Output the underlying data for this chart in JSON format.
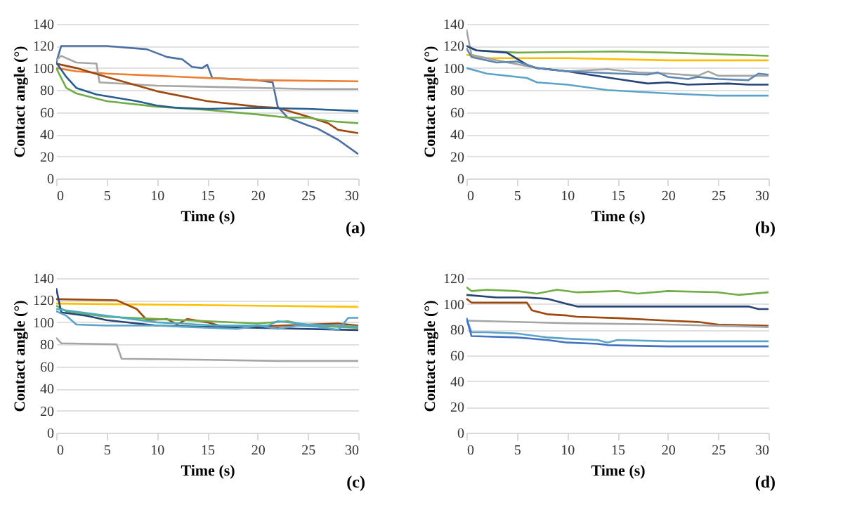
{
  "chart_data": [
    {
      "type": "line",
      "xlabel": "Time (s)",
      "ylabel": "Contact angle (°)",
      "xlim": [
        0,
        30
      ],
      "xticks": [
        0,
        5,
        10,
        15,
        20,
        25,
        30
      ],
      "ylim": [
        0,
        140
      ],
      "yticks": [
        0,
        20,
        40,
        60,
        80,
        100,
        120,
        140
      ],
      "grid": "y",
      "annotations": [
        "(a)"
      ],
      "series": [
        {
          "color": "#4a6fa5",
          "x": [
            0,
            0.5,
            5,
            9,
            11,
            12.5,
            13.5,
            14.5,
            15,
            15.5,
            20,
            21.5,
            22,
            23,
            25,
            26,
            28,
            30
          ],
          "values": [
            105,
            120,
            120,
            117,
            110,
            108,
            101,
            100,
            103,
            91,
            89,
            87,
            65,
            55,
            48,
            45,
            35,
            22
          ]
        },
        {
          "color": "#ed7d31",
          "x": [
            0,
            2,
            5,
            10,
            20,
            30
          ],
          "values": [
            100,
            97,
            95,
            93,
            89,
            88
          ]
        },
        {
          "color": "#a5a5a5",
          "x": [
            0,
            0.5,
            2,
            4,
            4.3,
            10,
            20,
            25,
            30
          ],
          "values": [
            107,
            111,
            105,
            104,
            87,
            84,
            82,
            81,
            81
          ]
        },
        {
          "color": "#9e480e",
          "x": [
            0,
            2,
            5,
            10,
            15,
            20,
            22,
            25,
            27,
            28,
            30
          ],
          "values": [
            104,
            100,
            92,
            79,
            70,
            65,
            64,
            56,
            50,
            44,
            41
          ]
        },
        {
          "color": "#70ad47",
          "x": [
            0,
            1,
            2,
            5,
            10,
            15,
            20,
            23,
            25,
            27,
            30
          ],
          "values": [
            100,
            82,
            77,
            70,
            65,
            62,
            58,
            55,
            55,
            52,
            50
          ]
        },
        {
          "color": "#255e91",
          "x": [
            0,
            1,
            2,
            4,
            6,
            8,
            10,
            12,
            15,
            20,
            25,
            30
          ],
          "values": [
            105,
            92,
            82,
            76,
            73,
            70,
            66,
            64,
            63,
            64,
            63,
            61
          ]
        }
      ]
    },
    {
      "type": "line",
      "xlabel": "Time (s)",
      "ylabel": "Contact angle (°)",
      "xlim": [
        0,
        30
      ],
      "xticks": [
        0,
        5,
        10,
        15,
        20,
        25,
        30
      ],
      "ylim": [
        0,
        140
      ],
      "yticks": [
        0,
        20,
        40,
        60,
        80,
        100,
        120,
        140
      ],
      "grid": "y",
      "annotations": [
        "(b)"
      ],
      "series": [
        {
          "color": "#70ad47",
          "x": [
            0,
            1,
            5,
            15,
            20,
            30
          ],
          "values": [
            120,
            116,
            114,
            115,
            114,
            111
          ]
        },
        {
          "color": "#ffc000",
          "x": [
            0,
            2,
            10,
            20,
            30
          ],
          "values": [
            112,
            109,
            109,
            107,
            107
          ]
        },
        {
          "color": "#a5a5a5",
          "x": [
            0,
            0.5,
            3,
            7,
            10,
            14,
            17,
            20,
            23,
            24,
            25,
            30
          ],
          "values": [
            135,
            112,
            107,
            100,
            97,
            99,
            96,
            95,
            93,
            97,
            93,
            93
          ]
        },
        {
          "color": "#264478",
          "x": [
            0,
            1,
            4,
            6,
            7,
            10,
            15,
            18,
            20,
            22,
            26,
            28,
            30
          ],
          "values": [
            120,
            116,
            114,
            103,
            100,
            97,
            90,
            86,
            87,
            85,
            86,
            85,
            85
          ]
        },
        {
          "color": "#5b87b3",
          "x": [
            0,
            0.5,
            3,
            5,
            7,
            10,
            15,
            18,
            19,
            20,
            22,
            23,
            25,
            28,
            29,
            30
          ],
          "values": [
            118,
            110,
            105,
            106,
            100,
            97,
            95,
            94,
            96,
            92,
            90,
            92,
            90,
            89,
            95,
            94
          ]
        },
        {
          "color": "#5ba3c9",
          "x": [
            0,
            2,
            6,
            7,
            10,
            14,
            20,
            25,
            30
          ],
          "values": [
            100,
            95,
            91,
            87,
            85,
            80,
            77,
            75,
            75
          ]
        }
      ]
    },
    {
      "type": "line",
      "xlabel": "Time (s)",
      "ylabel": "Contact angle (°)",
      "xlim": [
        0,
        30
      ],
      "xticks": [
        0,
        5,
        10,
        15,
        20,
        25,
        30
      ],
      "ylim": [
        0,
        140
      ],
      "yticks": [
        0,
        20,
        40,
        60,
        80,
        100,
        120,
        140
      ],
      "grid": "y",
      "annotations": [
        "(c)"
      ],
      "series": [
        {
          "color": "#ffc000",
          "x": [
            0,
            10,
            20,
            30
          ],
          "values": [
            117,
            116,
            115,
            114
          ]
        },
        {
          "color": "#9e480e",
          "x": [
            0,
            6,
            8,
            9,
            11,
            12,
            13,
            15,
            17,
            20,
            25,
            28,
            30
          ],
          "values": [
            121,
            120,
            112,
            102,
            103,
            98,
            103,
            100,
            95,
            96,
            98,
            99,
            97
          ]
        },
        {
          "color": "#70ad47",
          "x": [
            0,
            1,
            5,
            10,
            15,
            20,
            23,
            25,
            30
          ],
          "values": [
            115,
            110,
            105,
            103,
            101,
            99,
            101,
            97,
            95
          ]
        },
        {
          "color": "#264478",
          "x": [
            0,
            0.5,
            3,
            5,
            10,
            20,
            30
          ],
          "values": [
            131,
            109,
            106,
            102,
            97,
            95,
            93
          ]
        },
        {
          "color": "#5ba3c9",
          "x": [
            0,
            1,
            2,
            5,
            10,
            18,
            20,
            22,
            24,
            26,
            28,
            29,
            30
          ],
          "values": [
            110,
            106,
            98,
            97,
            97,
            94,
            97,
            94,
            97,
            96,
            93,
            104,
            104
          ]
        },
        {
          "color": "#4bacc6",
          "x": [
            0,
            10,
            16,
            21,
            22,
            25,
            30
          ],
          "values": [
            112,
            100,
            97,
            97,
            101,
            98,
            96
          ]
        },
        {
          "color": "#a5a5a5",
          "x": [
            0,
            0.5,
            6,
            6.5,
            15,
            22,
            30
          ],
          "values": [
            86,
            81,
            80,
            67,
            66,
            65,
            65
          ]
        }
      ]
    },
    {
      "type": "line",
      "xlabel": "Time (s)",
      "ylabel": "Contact angle (°)",
      "xlim": [
        0,
        30
      ],
      "xticks": [
        0,
        5,
        10,
        15,
        20,
        25,
        30
      ],
      "ylim": [
        0,
        120
      ],
      "yticks": [
        0,
        20,
        40,
        60,
        80,
        100,
        120
      ],
      "grid": "y",
      "annotations": [
        "(d)"
      ],
      "series": [
        {
          "color": "#70ad47",
          "x": [
            0,
            0.5,
            2,
            5,
            7,
            9,
            11,
            15,
            17,
            20,
            25,
            27,
            30
          ],
          "values": [
            113,
            110,
            111,
            110,
            108,
            111,
            109,
            110,
            108,
            110,
            109,
            107,
            109
          ]
        },
        {
          "color": "#264478",
          "x": [
            0,
            3,
            6,
            8,
            10,
            11,
            20,
            25,
            28,
            29,
            30
          ],
          "values": [
            107,
            105,
            105,
            104,
            100,
            98,
            98,
            98,
            98,
            96,
            96
          ]
        },
        {
          "color": "#9e480e",
          "x": [
            0,
            0.5,
            6,
            6.5,
            8,
            10,
            11,
            15,
            20,
            23,
            25,
            30
          ],
          "values": [
            104,
            101,
            101,
            95,
            92,
            91,
            90,
            89,
            87,
            86,
            84,
            83
          ]
        },
        {
          "color": "#a5a5a5",
          "x": [
            0,
            10,
            20,
            30
          ],
          "values": [
            87,
            85,
            84,
            82
          ]
        },
        {
          "color": "#5ba3c9",
          "x": [
            0,
            0.5,
            2,
            5,
            8,
            10,
            13,
            14,
            15,
            20,
            30
          ],
          "values": [
            89,
            78,
            78,
            77,
            74,
            73,
            72,
            70,
            72,
            71,
            71
          ]
        },
        {
          "color": "#4472c4",
          "x": [
            0,
            0.5,
            5,
            8,
            10,
            13,
            14,
            20,
            30
          ],
          "values": [
            89,
            75,
            74,
            72,
            70,
            69,
            68,
            67,
            67
          ]
        }
      ]
    }
  ]
}
